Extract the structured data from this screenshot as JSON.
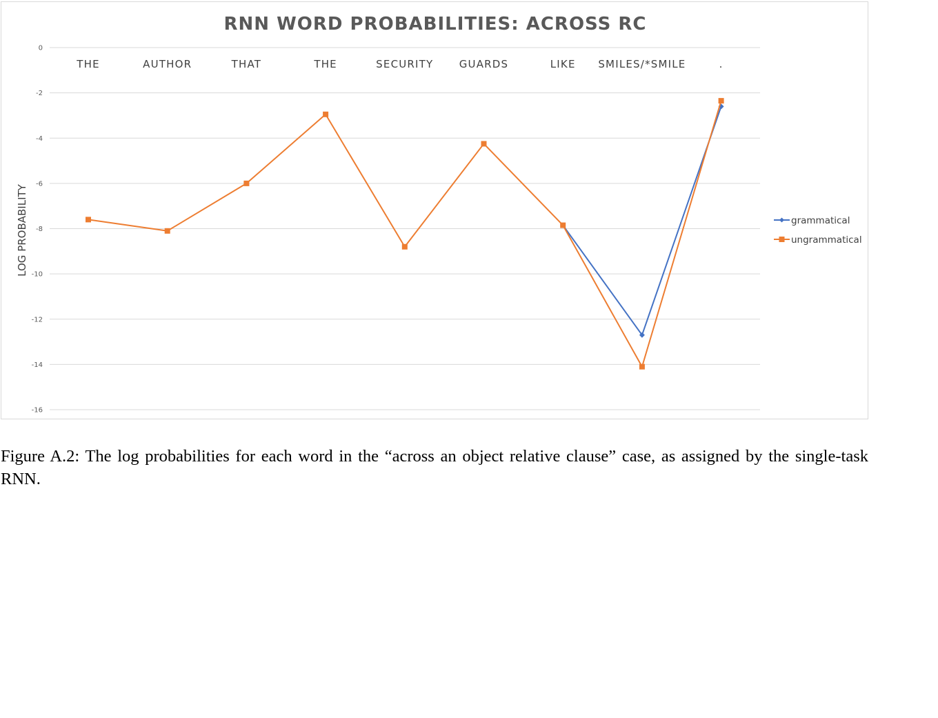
{
  "chart_data": {
    "type": "line",
    "title": "RNN WORD PROBABILITIES: ACROSS RC",
    "ylabel": "LOG PROBABILITY",
    "xlabel": "",
    "categories": [
      "THE",
      "AUTHOR",
      "THAT",
      "THE",
      "SECURITY",
      "GUARDS",
      "LIKE",
      "SMILES/*SMILE",
      "."
    ],
    "ylim": [
      -16,
      0
    ],
    "yticks": [
      0,
      -2,
      -4,
      -6,
      -8,
      -10,
      -12,
      -14,
      -16
    ],
    "grid": true,
    "x_axis_position": "top",
    "legend_position": "right",
    "series": [
      {
        "name": "grammatical",
        "color": "#4472c4",
        "marker": "diamond",
        "values": [
          null,
          null,
          null,
          null,
          null,
          null,
          -7.85,
          -12.7,
          -2.6
        ]
      },
      {
        "name": "ungrammatical",
        "color": "#ed7d31",
        "marker": "square",
        "values": [
          -7.6,
          -8.1,
          -6.0,
          -2.95,
          -8.8,
          -4.25,
          -7.85,
          -14.1,
          -2.35
        ]
      }
    ]
  },
  "caption": "Figure A.2: The log probabilities for each word in the “across an object relative clause” case, as assigned by the single-task RNN."
}
